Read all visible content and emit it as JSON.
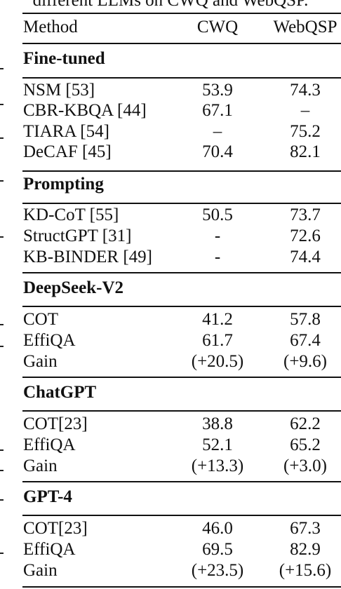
{
  "caption": "different LLMs on CWQ and WebQSP.",
  "header": {
    "method": "Method",
    "cwq": "CWQ",
    "webqsp": "WebQSP"
  },
  "groups": [
    {
      "name": "Fine-tuned",
      "rows": [
        {
          "method": "NSM [53]",
          "cwq": "53.9",
          "webqsp": "74.3"
        },
        {
          "method": "CBR-KBQA [44]",
          "cwq": "67.1",
          "webqsp": "–"
        },
        {
          "method": "TIARA [54]",
          "cwq": "–",
          "webqsp": "75.2"
        },
        {
          "method": "DeCAF [45]",
          "cwq": "70.4",
          "webqsp": "82.1"
        }
      ]
    },
    {
      "name": "Prompting",
      "rows": [
        {
          "method": "KD-CoT [55]",
          "cwq": "50.5",
          "webqsp": "73.7"
        },
        {
          "method": "StructGPT [31]",
          "cwq": "-",
          "webqsp": "72.6"
        },
        {
          "method": "KB-BINDER [49]",
          "cwq": "-",
          "webqsp": "74.4"
        }
      ]
    },
    {
      "name": "DeepSeek-V2",
      "rows": [
        {
          "method": "COT",
          "cwq": "41.2",
          "webqsp": "57.8"
        },
        {
          "method": "EffiQA",
          "cwq": "61.7",
          "webqsp": "67.4"
        },
        {
          "method": "Gain",
          "cwq": "(+20.5)",
          "webqsp": "(+9.6)"
        }
      ]
    },
    {
      "name": "ChatGPT",
      "rows": [
        {
          "method": "COT[23]",
          "cwq": "38.8",
          "webqsp": "62.2"
        },
        {
          "method": "EffiQA",
          "cwq": "52.1",
          "webqsp": "65.2"
        },
        {
          "method": "Gain",
          "cwq": "(+13.3)",
          "webqsp": "(+3.0)"
        }
      ]
    },
    {
      "name": "GPT-4",
      "rows": [
        {
          "method": "COT[23]",
          "cwq": "46.0",
          "webqsp": "67.3"
        },
        {
          "method": "EffiQA",
          "cwq": "69.5",
          "webqsp": "82.9"
        },
        {
          "method": "Gain",
          "cwq": "(+23.5)",
          "webqsp": "(+15.6)"
        }
      ]
    }
  ]
}
